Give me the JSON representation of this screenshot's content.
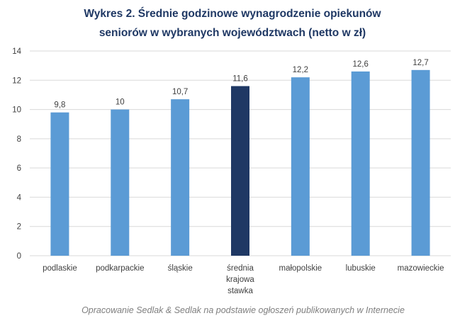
{
  "chart_data": {
    "type": "bar",
    "title": [
      "Wykres 2. Średnie godzinowe wynagrodzenie opiekunów",
      "seniorów w wybranych województwach (netto w zł)"
    ],
    "categories": [
      [
        "podlaskie"
      ],
      [
        "podkarpackie"
      ],
      [
        "śląskie"
      ],
      [
        "średnia",
        "krajowa",
        "stawka"
      ],
      [
        "małopolskie"
      ],
      [
        "lubuskie"
      ],
      [
        "mazowieckie"
      ]
    ],
    "values": [
      9.8,
      10,
      10.7,
      11.6,
      12.2,
      12.6,
      12.7
    ],
    "value_labels": [
      "9,8",
      "10",
      "10,7",
      "11,6",
      "12,2",
      "12,6",
      "12,7"
    ],
    "highlight_index": 3,
    "ylim": [
      0,
      14
    ],
    "yticks": [
      0,
      2,
      4,
      6,
      8,
      10,
      12,
      14
    ],
    "grid": true,
    "xlabel": "",
    "ylabel": "",
    "colors": {
      "bar": "#5b9bd5",
      "highlight": "#1f3864",
      "grid": "#d9d9d9"
    },
    "source": "Opracowanie Sedlak & Sedlak na podstawie ogłoszeń publikowanych w Internecie"
  }
}
